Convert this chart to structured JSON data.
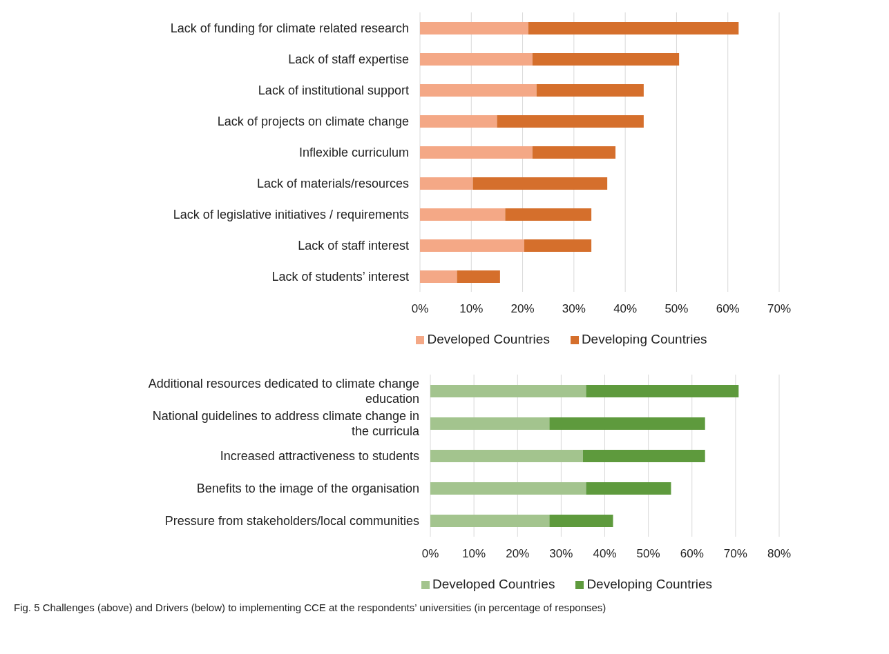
{
  "chart_data": [
    {
      "type": "bar",
      "orientation": "horizontal",
      "stacked": true,
      "categories": [
        "Lack of funding for climate related research",
        "Lack of staff expertise",
        "Lack of institutional support",
        "Lack of projects on climate change",
        "Inflexible curriculum",
        "Lack of materials/resources",
        "Lack of legislative initiatives / requirements",
        "Lack of staff interest",
        "Lack of students’ interest"
      ],
      "series": [
        {
          "name": "Developed Countries",
          "color": "#f4a886",
          "values": [
            21.1,
            21.9,
            22.7,
            15.0,
            21.9,
            10.3,
            16.6,
            20.3,
            7.2
          ]
        },
        {
          "name": "Developing Countries",
          "color": "#d56f2c",
          "values": [
            41.0,
            28.6,
            20.9,
            28.6,
            16.2,
            26.2,
            16.8,
            13.1,
            8.4
          ]
        }
      ],
      "xlim": [
        0,
        70
      ],
      "xticks": [
        {
          "value": 0,
          "label": "0%"
        },
        {
          "value": 10,
          "label": "10%"
        },
        {
          "value": 20,
          "label": "20%"
        },
        {
          "value": 30,
          "label": "30%"
        },
        {
          "value": 40,
          "label": "40%"
        },
        {
          "value": 50,
          "label": "50%"
        },
        {
          "value": 60,
          "label": "60%"
        },
        {
          "value": 70,
          "label": "70%"
        }
      ],
      "grid": "x",
      "legend": "bottom"
    },
    {
      "type": "bar",
      "orientation": "horizontal",
      "stacked": true,
      "categories": [
        "Additional resources dedicated to climate change education",
        "National guidelines to address climate change in the curricula",
        "Increased attractiveness to students",
        "Benefits to the image of the organisation",
        "Pressure from stakeholders/local communities"
      ],
      "series": [
        {
          "name": "Developed Countries",
          "color": "#a3c48e",
          "values": [
            35.7,
            27.3,
            35.0,
            35.7,
            27.3
          ]
        },
        {
          "name": "Developing Countries",
          "color": "#5e9a3d",
          "values": [
            35.0,
            35.7,
            28.0,
            19.5,
            14.6
          ]
        }
      ],
      "xlim": [
        0,
        80
      ],
      "xticks": [
        {
          "value": 0,
          "label": "0%"
        },
        {
          "value": 10,
          "label": "10%"
        },
        {
          "value": 20,
          "label": "20%"
        },
        {
          "value": 30,
          "label": "30%"
        },
        {
          "value": 40,
          "label": "40%"
        },
        {
          "value": 50,
          "label": "50%"
        },
        {
          "value": 60,
          "label": "60%"
        },
        {
          "value": 70,
          "label": "70%"
        },
        {
          "value": 80,
          "label": "80%"
        }
      ],
      "grid": "x",
      "legend": "bottom",
      "annotations": [
        "Fig. 5 Challenges (above) and Drivers (below) to implementing CCE at the respondents’ universities (in percentage of responses)"
      ]
    }
  ]
}
